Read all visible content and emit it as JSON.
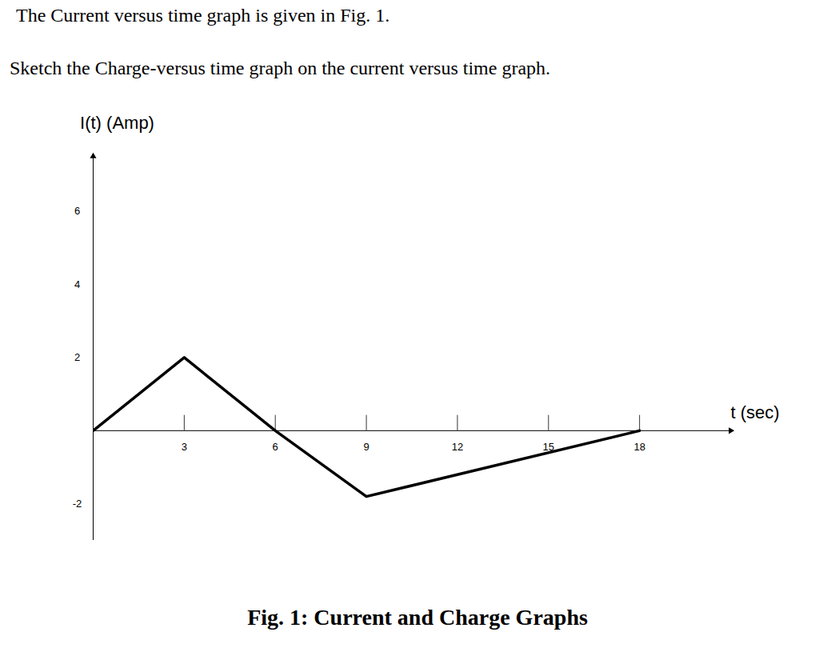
{
  "instructions": [
    "The Current versus time graph is given in Fig. 1.",
    "Sketch the Charge-versus time graph on the current versus time graph."
  ],
  "caption": "Fig. 1: Current and Charge Graphs",
  "chart_data": {
    "type": "line",
    "x_label": "t (sec)",
    "y_label": "I(t) (Amp)",
    "x": [
      0,
      3,
      6,
      9,
      18
    ],
    "values": [
      0,
      2,
      0,
      -1.8,
      0
    ],
    "color": "#000000",
    "xlim": [
      0,
      21
    ],
    "ylim": [
      -3,
      7.5
    ],
    "xticks": [
      3,
      6,
      9,
      12,
      15,
      18
    ],
    "yticks": [
      -2,
      2,
      4,
      6
    ],
    "grid": false
  }
}
